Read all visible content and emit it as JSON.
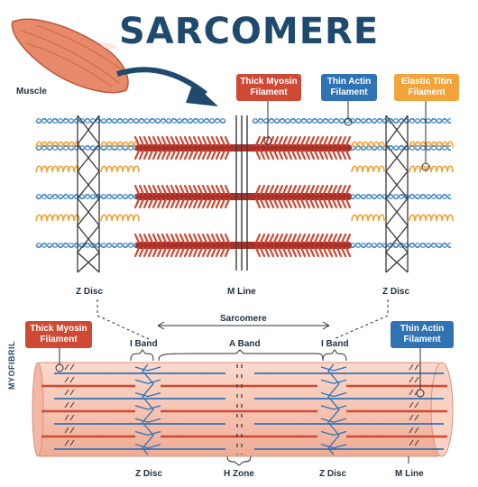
{
  "title": "SARCOMERE",
  "labels": {
    "muscle": "Muscle",
    "thick_myosin_top": [
      "Thick Myosin",
      "Filament"
    ],
    "thin_actin_top": [
      "Thin Actin",
      "Filament"
    ],
    "elastic_titin": [
      "Elastic Titin",
      "Filament"
    ],
    "z_disc_left": "Z Disc",
    "m_line_top": "M Line",
    "z_disc_right": "Z Disc",
    "sarcomere": "Sarcomere",
    "thick_myosin_bottom": [
      "Thick Myosin",
      "Filament"
    ],
    "thin_actin_bottom": [
      "Thin Actin",
      "Filament"
    ],
    "i_band_left": "I Band",
    "a_band": "A Band",
    "i_band_right": "I Band",
    "myofibril": "MYOFIBRIL",
    "z_disc_bottom_left": "Z Disc",
    "h_zone": "H Zone",
    "z_disc_bottom_right": "Z Disc",
    "m_line_bottom": "M Line"
  },
  "colors": {
    "title": "#1f4a6e",
    "myosin": "#cf4a35",
    "actin": "#2f73b5",
    "titin": "#f2a43b",
    "myofibril": "#f6c4b2"
  }
}
